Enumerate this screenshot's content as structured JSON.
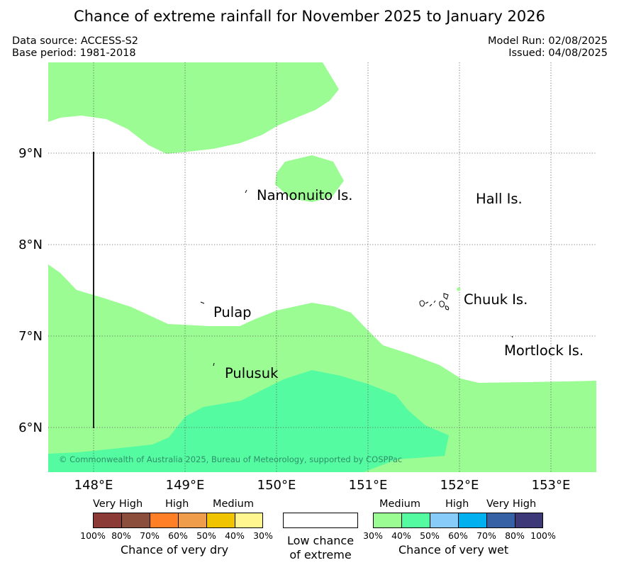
{
  "title": "Chance of extreme rainfall for November 2025 to January 2026",
  "meta": {
    "data_source": "Data source: ACCESS-S2",
    "base_period": "Base period: 1981-2018",
    "model_run": "Model Run: 02/08/2025",
    "issued": "Issued: 04/08/2025"
  },
  "map": {
    "lon_ticks": [
      "148°E",
      "149°E",
      "150°E",
      "151°E",
      "152°E",
      "153°E"
    ],
    "lat_ticks": [
      "9°N",
      "8°N",
      "7°N",
      "6°N"
    ],
    "islands": [
      {
        "name": "Namonuito Is."
      },
      {
        "name": "Hall Is."
      },
      {
        "name": "Pulap"
      },
      {
        "name": "Chuuk Is."
      },
      {
        "name": "Mortlock Is."
      },
      {
        "name": "Pulusuk"
      }
    ],
    "copyright": "© Commonwealth of Australia 2025, Bureau of Meteorology, supported by COSPPac"
  },
  "legend": {
    "dry": {
      "categories": [
        "Very High",
        "High",
        "Medium"
      ],
      "colors": [
        "#8b3a35",
        "#8b4e3d",
        "#ff7f27",
        "#ef9c4b",
        "#f0c400",
        "#fff68f"
      ],
      "ticks": [
        "100%",
        "80%",
        "70%",
        "60%",
        "50%",
        "40%",
        "30%"
      ],
      "caption": "Chance of very dry"
    },
    "neutral": {
      "color": "#ffffff",
      "caption_line1": "Low chance",
      "caption_line2": "of extreme"
    },
    "wet": {
      "categories": [
        "Medium",
        "High",
        "Very High"
      ],
      "colors": [
        "#9afc92",
        "#55fba0",
        "#88cdfa",
        "#00b0ef",
        "#3661a5",
        "#3d3878"
      ],
      "ticks": [
        "30%",
        "40%",
        "50%",
        "60%",
        "70%",
        "80%",
        "100%"
      ],
      "caption": "Chance of very wet"
    }
  },
  "colors": {
    "medium_wet_30": "#9afc92",
    "medium_wet_40": "#55fba0"
  }
}
